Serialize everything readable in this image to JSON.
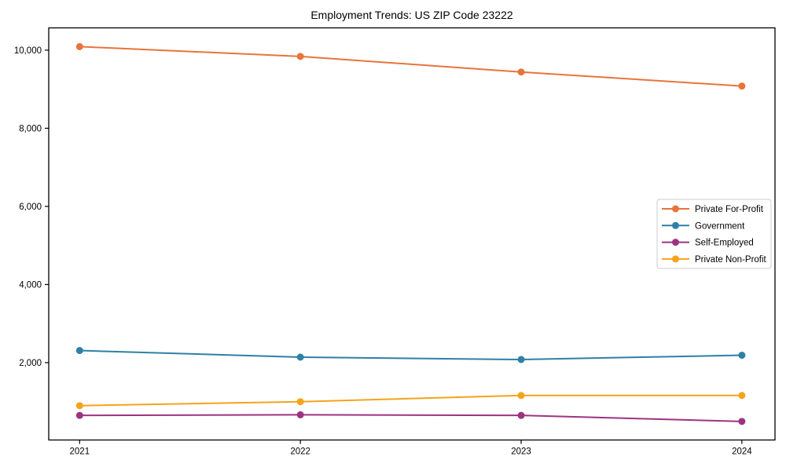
{
  "figure": {
    "background": "#ffffff",
    "axis_color": "#000000",
    "text_color": "#000000",
    "legend_border_color": "#cccccc"
  },
  "chart_data": {
    "type": "line",
    "title": "Employment Trends: US ZIP Code 23222",
    "xlabel": "",
    "ylabel": "",
    "x": [
      2021,
      2022,
      2023,
      2024
    ],
    "x_tick_labels": [
      "2021",
      "2022",
      "2023",
      "2024"
    ],
    "series": [
      {
        "name": "Private For-Profit",
        "color": "#E8743B",
        "values": [
          10090,
          9840,
          9440,
          9080
        ]
      },
      {
        "name": "Government",
        "color": "#2E80A6",
        "values": [
          2310,
          2140,
          2080,
          2190
        ]
      },
      {
        "name": "Self-Employed",
        "color": "#9D3380",
        "values": [
          650,
          665,
          650,
          495
        ]
      },
      {
        "name": "Private Non-Profit",
        "color": "#F5A31C",
        "values": [
          900,
          1000,
          1160,
          1160
        ]
      }
    ],
    "yticks": [
      2000,
      4000,
      6000,
      8000,
      10000
    ],
    "ytick_labels": [
      "2,000",
      "4,000",
      "6,000",
      "8,000",
      "10,000"
    ],
    "ylim": [
      20,
      10570
    ],
    "xlim": [
      2020.86,
      2024.15
    ],
    "grid": false,
    "marker": "circle",
    "legend_position": "center right"
  }
}
